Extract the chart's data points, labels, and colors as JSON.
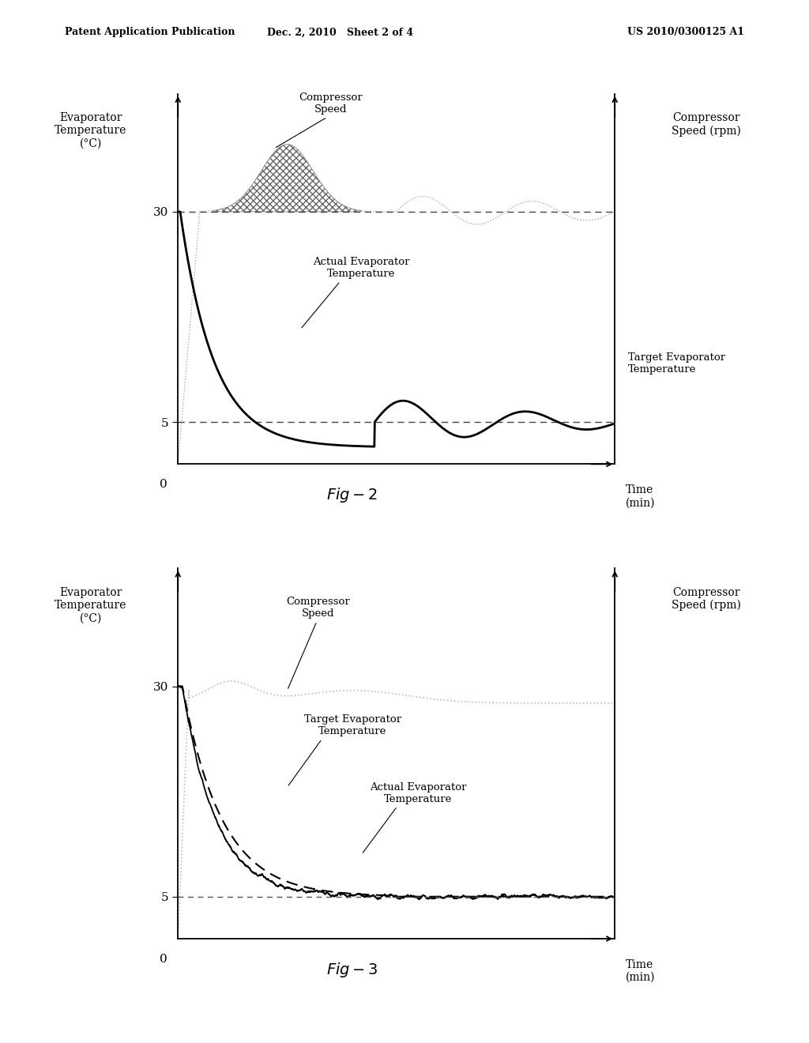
{
  "header_left": "Patent Application Publication",
  "header_mid": "Dec. 2, 2010   Sheet 2 of 4",
  "header_right": "US 2010/0300125 A1",
  "fig2_caption": "Fig-2",
  "fig3_caption": "Fig-3",
  "bg_color": "#ffffff",
  "line_color": "#000000",
  "gray_color": "#aaaaaa",
  "dashed_color": "#555555"
}
